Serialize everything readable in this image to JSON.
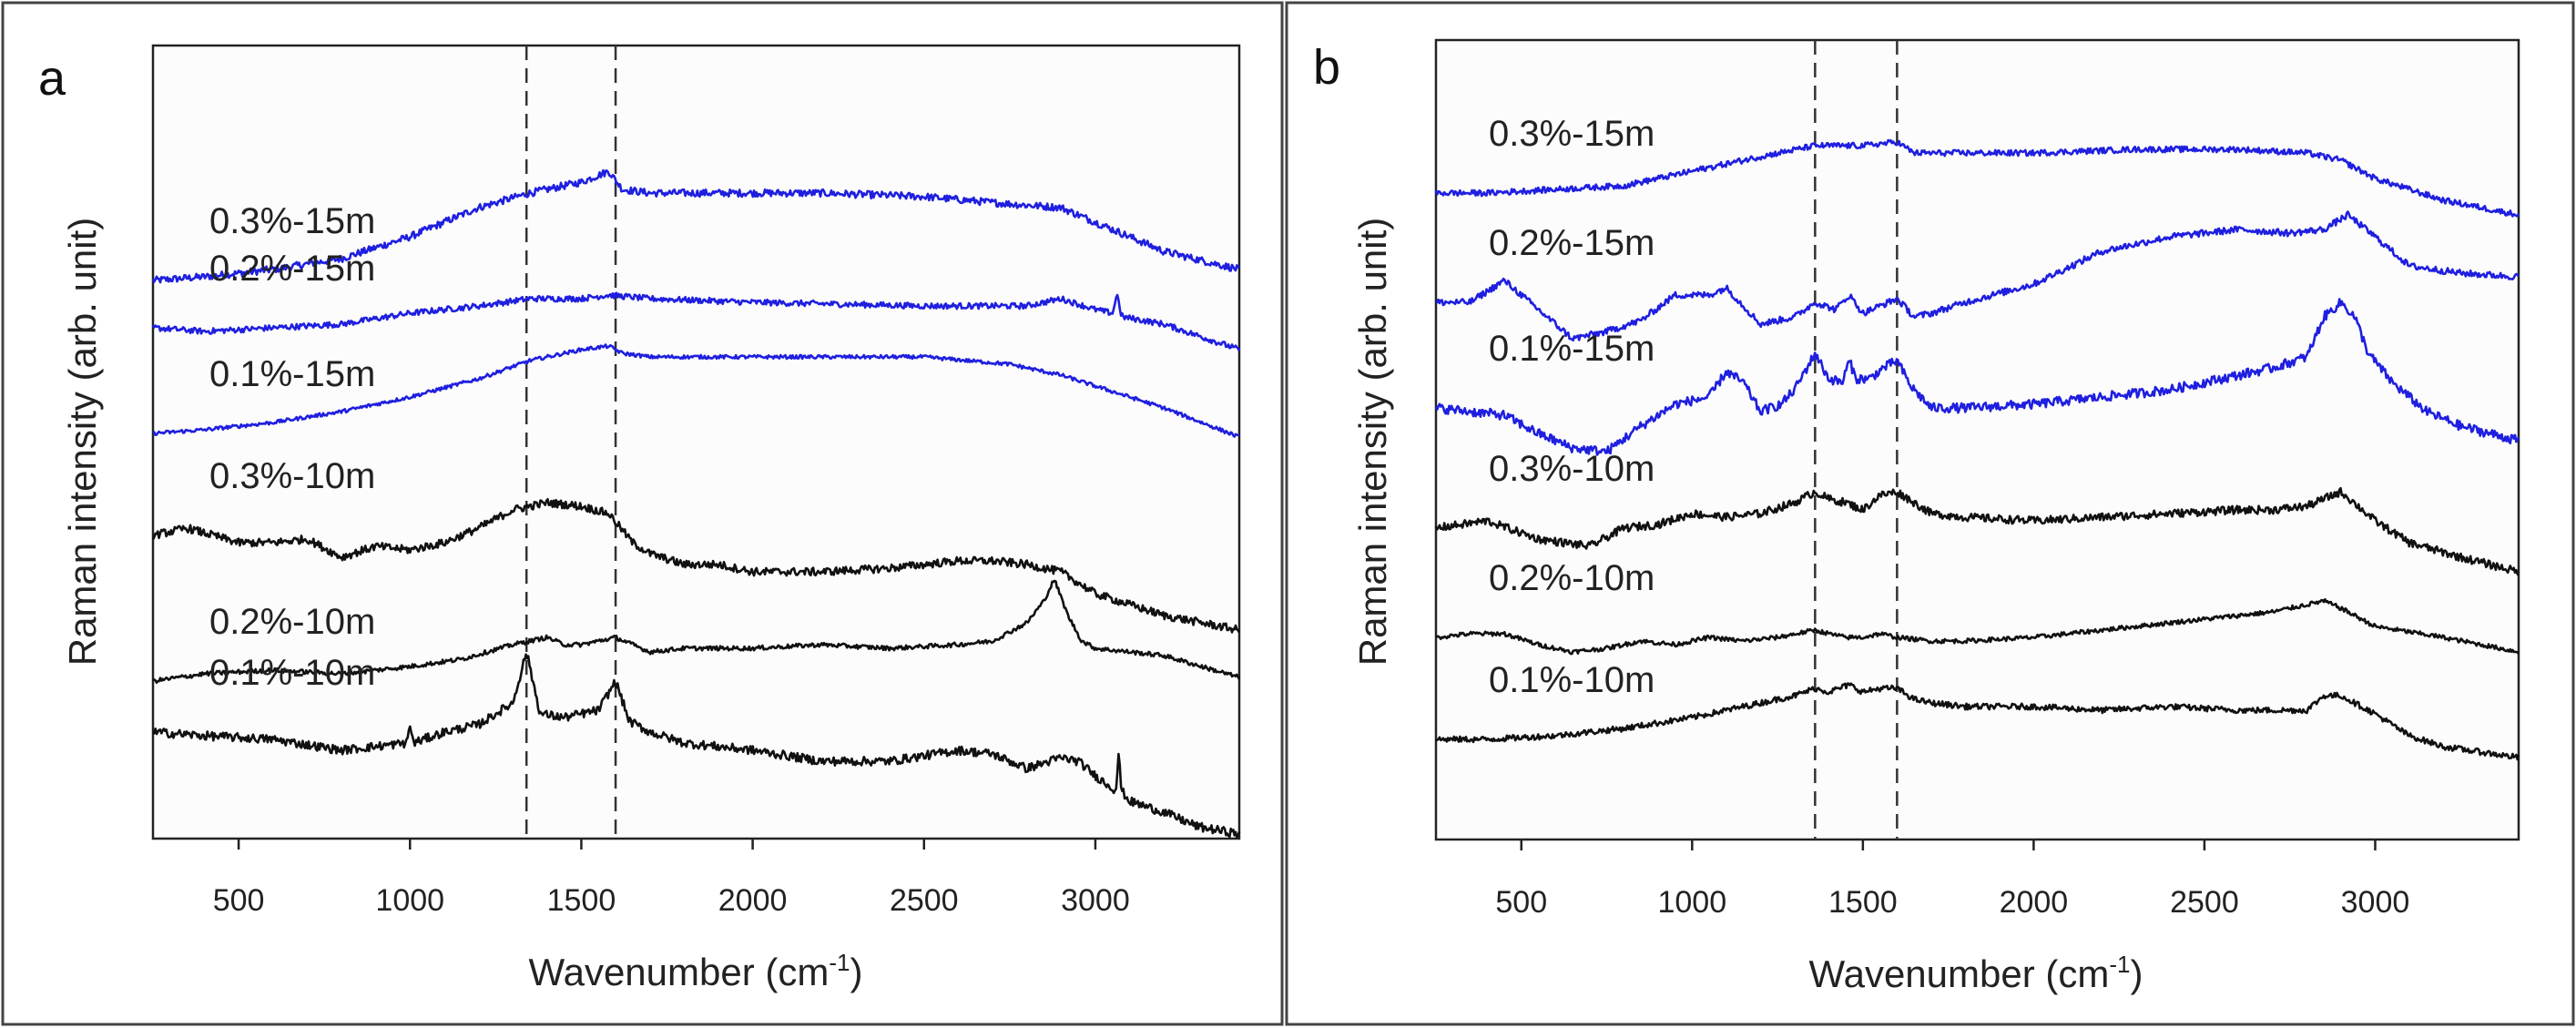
{
  "chart_data": [
    {
      "type": "line",
      "panel_label": "a",
      "title": "",
      "xlabel": "Wavenumber (cm",
      "xlabel_sup": "-1",
      "xlabel_end": ")",
      "ylabel": "Raman intensity (arb. unit)",
      "xlim": [
        250,
        3420
      ],
      "ylim": [
        0,
        100
      ],
      "xticks": [
        500,
        1000,
        1500,
        2000,
        2500,
        3000
      ],
      "reference_lines": [
        1340,
        1600
      ],
      "series": [
        {
          "name": "0.3%-15m",
          "color": "#1f1fe0",
          "noise": 0.5,
          "x": [
            250,
            400,
            600,
            800,
            1000,
            1200,
            1350,
            1500,
            1580,
            1620,
            1700,
            1900,
            2200,
            2500,
            2750,
            2900,
            3050,
            3200,
            3420
          ],
          "y": [
            74,
            74.5,
            75.5,
            77,
            80,
            84,
            86,
            87.5,
            89,
            86.5,
            86,
            86,
            86,
            85.5,
            84.5,
            84,
            81,
            78,
            75.5
          ]
        },
        {
          "name": "0.2%-15m",
          "color": "#1f1fe0",
          "noise": 0.4,
          "x": [
            250,
            400,
            600,
            800,
            1000,
            1200,
            1350,
            1500,
            1580,
            1700,
            2000,
            2500,
            2800,
            2900,
            3000,
            3050,
            3066,
            3072,
            3080,
            3200,
            3420
          ],
          "y": [
            67.5,
            67,
            67.5,
            68,
            69.5,
            70.5,
            71.5,
            71.5,
            72,
            71.5,
            71,
            70.5,
            70.5,
            71.5,
            70,
            69.5,
            72.5,
            69.5,
            69,
            68,
            64.5
          ]
        },
        {
          "name": "0.1%-15m",
          "color": "#1f1fe0",
          "noise": 0.25,
          "x": [
            250,
            400,
            600,
            800,
            1000,
            1200,
            1350,
            1500,
            1580,
            1620,
            1700,
            1900,
            2200,
            2500,
            2750,
            2900,
            3000,
            3200,
            3420
          ],
          "y": [
            53,
            53.5,
            54.5,
            56,
            58,
            60.5,
            63,
            64.5,
            65,
            64,
            63.5,
            63.5,
            63.5,
            63.5,
            62.5,
            61,
            59.5,
            56.5,
            52.5
          ]
        },
        {
          "name": "0.3%-10m",
          "color": "#111111",
          "noise": 0.55,
          "x": [
            250,
            350,
            500,
            600,
            700,
            800,
            900,
            1000,
            1100,
            1200,
            1300,
            1400,
            1500,
            1580,
            1650,
            1700,
            1800,
            1900,
            2000,
            2200,
            2400,
            2600,
            2700,
            2800,
            2900,
            3000,
            3200,
            3420
          ],
          "y": [
            39,
            40,
            38,
            38,
            38.5,
            36,
            37.5,
            37,
            38,
            40,
            42.5,
            43.5,
            43,
            42,
            38,
            36.5,
            35,
            35,
            34,
            34,
            34.5,
            35.5,
            35.5,
            35,
            34,
            31,
            28,
            26
          ]
        },
        {
          "name": "0.2%-10m",
          "color": "#111111",
          "noise": 0.3,
          "x": [
            250,
            400,
            600,
            800,
            1000,
            1150,
            1300,
            1350,
            1400,
            1450,
            1500,
            1550,
            1600,
            1650,
            1700,
            1800,
            1900,
            2000,
            2200,
            2400,
            2600,
            2700,
            2800,
            2850,
            2880,
            2920,
            2960,
            3000,
            3100,
            3200,
            3420
          ],
          "y": [
            19,
            20,
            20.5,
            20,
            21,
            22,
            24,
            24.5,
            25,
            24,
            24,
            24.5,
            25,
            24,
            23,
            23.5,
            23.5,
            23.5,
            24,
            23.5,
            24,
            24.5,
            27,
            30,
            33,
            28,
            24.5,
            23.5,
            23,
            22.5,
            19.5
          ]
        },
        {
          "name": "0.1%-10m",
          "color": "#111111",
          "noise": 0.6,
          "x": [
            250,
            400,
            600,
            800,
            990,
            1000,
            1010,
            1100,
            1200,
            1300,
            1340,
            1380,
            1450,
            1550,
            1600,
            1640,
            1700,
            1800,
            2000,
            2200,
            2400,
            2600,
            2700,
            2800,
            2900,
            2950,
            3000,
            3060,
            3068,
            3076,
            3100,
            3200,
            3300,
            3420
          ],
          "y": [
            12,
            11.5,
            11,
            9.5,
            10.5,
            13,
            10.5,
            12,
            13,
            16,
            23,
            14.5,
            14,
            15,
            19,
            13.5,
            12,
            10.5,
            9.5,
            8,
            8,
            9.5,
            9,
            7,
            8.5,
            8,
            6,
            4,
            9,
            4,
            2.5,
            1,
            -1,
            -2
          ]
        }
      ]
    },
    {
      "type": "line",
      "panel_label": "b",
      "title": "",
      "xlabel": "Wavenumber (cm",
      "xlabel_sup": "-1",
      "xlabel_end": ")",
      "ylabel": "Raman intensity (arb. unit)",
      "xlim": [
        250,
        3420
      ],
      "ylim": [
        0,
        100
      ],
      "xticks": [
        500,
        1000,
        1500,
        2000,
        2500,
        3000
      ],
      "reference_lines": [
        1360,
        1600
      ],
      "series": [
        {
          "name": "0.3%-15m",
          "color": "#1f1fe0",
          "noise": 0.4,
          "x": [
            250,
            400,
            600,
            800,
            1000,
            1200,
            1360,
            1500,
            1600,
            1650,
            1800,
            2000,
            2300,
            2600,
            2800,
            2900,
            3000,
            3200,
            3420
          ],
          "y": [
            81,
            81,
            81.5,
            82,
            84,
            86,
            87.5,
            87.5,
            88,
            86.5,
            86.5,
            86.5,
            87,
            87,
            86.5,
            85.5,
            83,
            80,
            78
          ]
        },
        {
          "name": "0.2%-15m",
          "color": "#1f1fe0",
          "noise": 0.45,
          "x": [
            250,
            350,
            450,
            550,
            650,
            750,
            850,
            950,
            1050,
            1100,
            1200,
            1300,
            1360,
            1420,
            1460,
            1500,
            1550,
            1600,
            1650,
            1700,
            1800,
            2000,
            2200,
            2400,
            2600,
            2750,
            2850,
            2920,
            3000,
            3100,
            3250,
            3420
          ],
          "y": [
            66,
            66,
            69,
            65,
            61,
            62,
            63.5,
            67,
            67,
            68,
            63,
            64,
            66,
            65,
            67,
            64.5,
            65.5,
            66.5,
            64,
            64.5,
            66,
            68.5,
            73,
            75,
            76,
            75.5,
            76,
            78,
            75,
            71,
            70,
            69.5
          ]
        },
        {
          "name": "0.1%-15m",
          "color": "#1f1fe0",
          "noise": 0.65,
          "x": [
            250,
            350,
            450,
            550,
            650,
            750,
            850,
            950,
            1050,
            1100,
            1150,
            1200,
            1260,
            1300,
            1360,
            1400,
            1440,
            1460,
            1480,
            1520,
            1560,
            1600,
            1640,
            1700,
            1800,
            2000,
            2200,
            2400,
            2600,
            2700,
            2800,
            2850,
            2900,
            2940,
            2980,
            3050,
            3150,
            3250,
            3420
          ],
          "y": [
            51.5,
            51,
            50.5,
            48,
            46,
            45.5,
            49,
            52,
            53,
            56.5,
            55,
            51,
            52,
            54,
            59,
            55.5,
            55,
            58,
            55.5,
            55.5,
            57,
            58,
            54.5,
            51.5,
            51.5,
            52,
            53,
            54,
            56,
            57,
            58.5,
            64,
            66,
            64,
            59,
            55,
            51,
            49,
            47
          ]
        },
        {
          "name": "0.3%-10m",
          "color": "#111111",
          "noise": 0.55,
          "x": [
            250,
            400,
            550,
            700,
            800,
            900,
            1000,
            1100,
            1200,
            1300,
            1360,
            1400,
            1450,
            1500,
            1550,
            1600,
            1650,
            1700,
            1800,
            2000,
            2200,
            2400,
            2600,
            2700,
            2800,
            2900,
            3000,
            3100,
            3250,
            3420
          ],
          "y": [
            35,
            36,
            33.5,
            32.5,
            35,
            35.5,
            37,
            36.5,
            37,
            38.5,
            40,
            39,
            38.5,
            37.5,
            39.5,
            40,
            38.5,
            37,
            36.5,
            36,
            36.5,
            37,
            37.5,
            37.5,
            38,
            40,
            36,
            33,
            31,
            29
          ]
        },
        {
          "name": "0.2%-10m",
          "color": "#111111",
          "noise": 0.3,
          "x": [
            250,
            350,
            450,
            550,
            650,
            750,
            850,
            950,
            1050,
            1150,
            1250,
            1360,
            1400,
            1450,
            1500,
            1550,
            1600,
            1700,
            1800,
            2000,
            2200,
            2400,
            2600,
            2700,
            2800,
            2850,
            2900,
            3000,
            3200,
            3420
          ],
          "y": [
            20,
            20.5,
            20.5,
            19,
            18,
            18.5,
            19.5,
            19,
            20,
            19.5,
            20,
            21,
            20.5,
            20,
            20,
            20.5,
            20,
            19.5,
            19.5,
            20,
            21,
            22,
            23,
            23.5,
            24.5,
            25,
            24,
            21.5,
            20,
            18
          ]
        },
        {
          "name": "0.1%-10m",
          "color": "#111111",
          "noise": 0.4,
          "x": [
            250,
            400,
            600,
            800,
            1000,
            1200,
            1300,
            1360,
            1400,
            1460,
            1500,
            1550,
            1600,
            1650,
            1700,
            1800,
            2000,
            2200,
            2400,
            2600,
            2700,
            2800,
            2850,
            2900,
            3000,
            3100,
            3200,
            3420
          ],
          "y": [
            6,
            6,
            6.5,
            7.5,
            9,
            11,
            12,
            13,
            12.5,
            13.5,
            12.5,
            13,
            13,
            11.5,
            11,
            10.5,
            10.5,
            10,
            10.5,
            10,
            10,
            10,
            12,
            12,
            9.5,
            6.5,
            5,
            3.5
          ]
        }
      ]
    }
  ]
}
